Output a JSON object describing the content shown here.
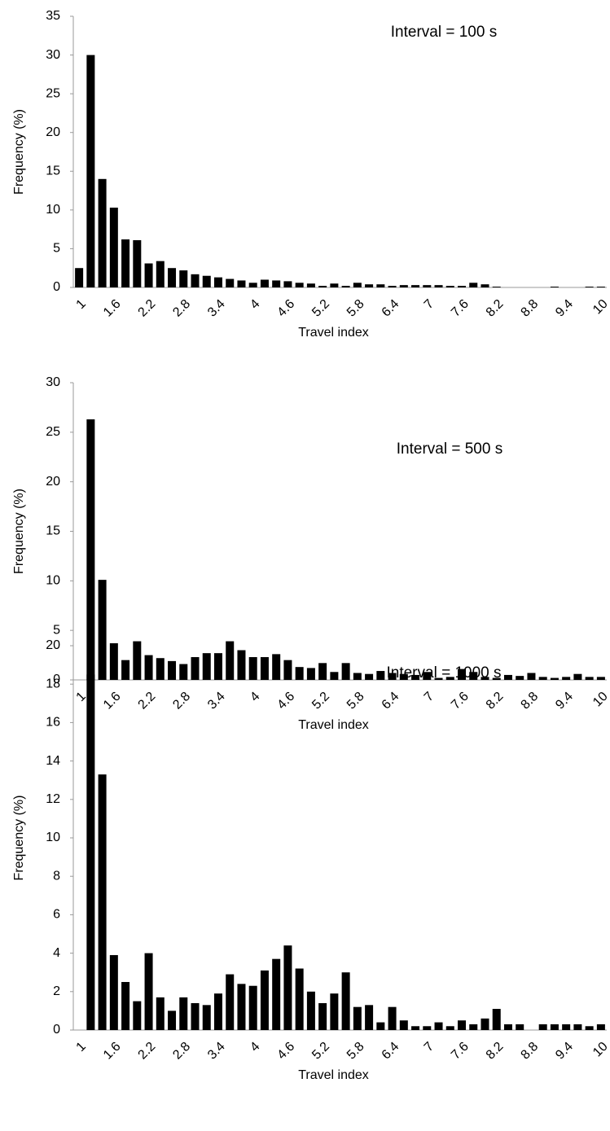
{
  "chart_data": [
    {
      "type": "bar",
      "annotation": "Interval = 100 s",
      "x_label": "Travel index",
      "y_label": "Frequency (%)",
      "color": "#000000",
      "categories": [
        "1",
        null,
        null,
        "1.6",
        null,
        null,
        "2.2",
        null,
        null,
        "2.8",
        null,
        null,
        "3.4",
        null,
        null,
        "4",
        null,
        null,
        "4.6",
        null,
        null,
        "5.2",
        null,
        null,
        "5.8",
        null,
        null,
        "6.4",
        null,
        null,
        "7",
        null,
        null,
        "7.6",
        null,
        null,
        "8.2",
        null,
        null,
        "8.8",
        null,
        null,
        "9.4",
        null,
        null,
        "10"
      ],
      "values": [
        2.5,
        30,
        14,
        10.3,
        6.2,
        6.1,
        3.1,
        3.4,
        2.5,
        2.2,
        1.7,
        1.5,
        1.3,
        1.1,
        0.9,
        0.6,
        1.0,
        0.9,
        0.8,
        0.6,
        0.5,
        0.2,
        0.5,
        0.2,
        0.6,
        0.4,
        0.4,
        0.2,
        0.3,
        0.3,
        0.3,
        0.3,
        0.2,
        0.2,
        0.6,
        0.4,
        0.1,
        0,
        0,
        0,
        0,
        0.1,
        0,
        0,
        0.1,
        0.1
      ],
      "ylim": [
        0,
        35
      ],
      "yticks": [
        0,
        5,
        10,
        15,
        20,
        25,
        30,
        35
      ]
    },
    {
      "type": "bar",
      "annotation": "Interval = 500 s",
      "x_label": "Travel index",
      "y_label": "Frequency (%)",
      "color": "#000000",
      "categories": [
        "1",
        null,
        null,
        "1.6",
        null,
        null,
        "2.2",
        null,
        null,
        "2.8",
        null,
        null,
        "3.4",
        null,
        null,
        "4",
        null,
        null,
        "4.6",
        null,
        null,
        "5.2",
        null,
        null,
        "5.8",
        null,
        null,
        "6.4",
        null,
        null,
        "7",
        null,
        null,
        "7.6",
        null,
        null,
        "8.2",
        null,
        null,
        "8.8",
        null,
        null,
        "9.4",
        null,
        null,
        "10"
      ],
      "values": [
        0,
        26.3,
        10.1,
        3.7,
        2.0,
        3.9,
        2.5,
        2.2,
        1.9,
        1.6,
        2.3,
        2.7,
        2.7,
        3.9,
        3.0,
        2.3,
        2.3,
        2.6,
        2.0,
        1.3,
        1.2,
        1.7,
        0.8,
        1.7,
        0.7,
        0.6,
        0.9,
        0.7,
        0.6,
        0.5,
        0.8,
        0.2,
        0.3,
        1.1,
        0.8,
        0.3,
        0.2,
        0.5,
        0.4,
        0.7,
        0.3,
        0.2,
        0.3,
        0.6,
        0.3,
        0.3
      ],
      "ylim": [
        0,
        30
      ],
      "yticks": [
        0,
        5,
        10,
        15,
        20,
        25,
        30
      ]
    },
    {
      "type": "bar",
      "annotation": "Interval = 1000 s",
      "x_label": "Travel index",
      "y_label": "Frequency (%)",
      "color": "#000000",
      "categories": [
        "1",
        null,
        null,
        "1.6",
        null,
        null,
        "2.2",
        null,
        null,
        "2.8",
        null,
        null,
        "3.4",
        null,
        null,
        "4",
        null,
        null,
        "4.6",
        null,
        null,
        "5.2",
        null,
        null,
        "5.8",
        null,
        null,
        "6.4",
        null,
        null,
        "7",
        null,
        null,
        "7.6",
        null,
        null,
        "8.2",
        null,
        null,
        "8.8",
        null,
        null,
        "9.4",
        null,
        null,
        "10"
      ],
      "values": [
        0,
        18.5,
        13.3,
        3.9,
        2.5,
        1.5,
        4.0,
        1.7,
        1.0,
        1.7,
        1.4,
        1.3,
        1.9,
        2.9,
        2.4,
        2.3,
        3.1,
        3.7,
        4.4,
        3.2,
        2.0,
        1.4,
        1.9,
        3.0,
        1.2,
        1.3,
        0.4,
        1.2,
        0.5,
        0.2,
        0.2,
        0.4,
        0.2,
        0.5,
        0.3,
        0.6,
        1.1,
        0.3,
        0.3,
        0,
        0.3,
        0.3,
        0.3,
        0.3,
        0.2,
        0.3
      ],
      "ylim": [
        0,
        20
      ],
      "yticks": [
        0,
        2,
        4,
        6,
        8,
        10,
        12,
        14,
        16,
        18,
        20
      ]
    }
  ]
}
